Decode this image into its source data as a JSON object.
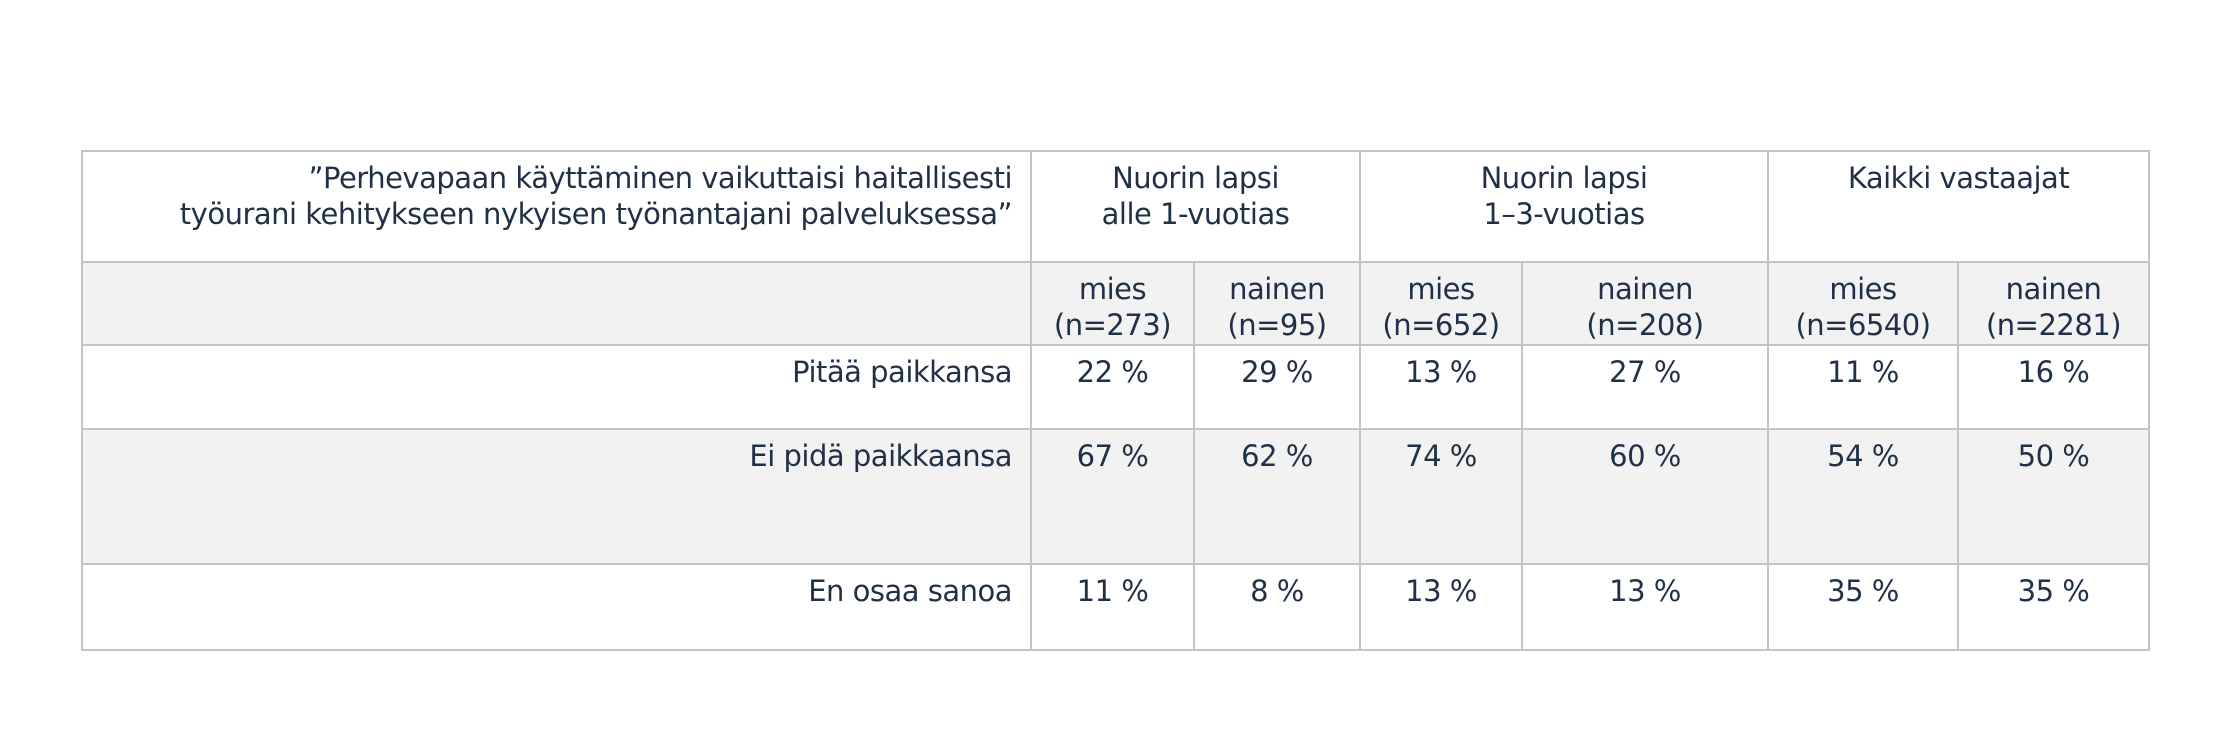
{
  "table": {
    "question": [
      "”Perhevapaan käyttäminen vaikuttaisi haitallisesti",
      "työurani kehitykseen nykyisen työnantajani palveluksessa”"
    ],
    "groups": [
      {
        "label": [
          "Nuorin lapsi",
          "alle 1-vuotias"
        ]
      },
      {
        "label": [
          "Nuorin lapsi",
          "1–3-vuotias"
        ]
      },
      {
        "label": [
          "Kaikki vastaajat",
          ""
        ]
      }
    ],
    "subheaders": [
      {
        "label": "mies",
        "n": "(n=273)"
      },
      {
        "label": "nainen",
        "n": "(n=95)"
      },
      {
        "label": "mies",
        "n": "(n=652)"
      },
      {
        "label": "nainen",
        "n": "(n=208)"
      },
      {
        "label": "mies",
        "n": "(n=6540)"
      },
      {
        "label": "nainen",
        "n": "(n=2281)"
      }
    ],
    "rows": [
      {
        "label": "Pitää paikkansa",
        "values": [
          "22 %",
          "29 %",
          "13 %",
          "27 %",
          "11 %",
          "16 %"
        ]
      },
      {
        "label": "Ei pidä paikkaansa",
        "values": [
          "67 %",
          "62 %",
          "74 %",
          "60 %",
          "54 %",
          "50 %"
        ]
      },
      {
        "label": "En osaa sanoa",
        "values": [
          "11 %",
          "8 %",
          "13 %",
          "13 %",
          "35 %",
          "35 %"
        ]
      }
    ]
  },
  "colors": {
    "text": "#1f3047",
    "border": "#c4c4c4",
    "alt_row": "#f2f2f2"
  }
}
